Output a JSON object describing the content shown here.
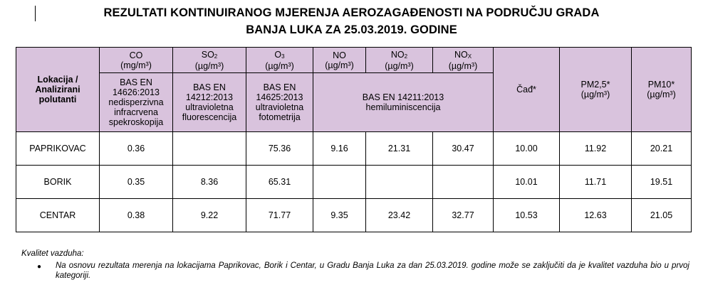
{
  "title": {
    "line1": "REZULTATI KONTINUIRANOG MJERENJA AEROZAGAĐENOSTI NA PODRUČJU GRADA",
    "line2": "BANJA LUKA ZA 25.03.2019. GODINE"
  },
  "table": {
    "corner_header": {
      "line1": "Lokacija /",
      "line2": "Analizirani",
      "line3": "polutanti"
    },
    "pollutants": [
      {
        "name": "CO",
        "unit": "(mg/m³)"
      },
      {
        "name": "SO",
        "sub": "2",
        "unit": "(µg/m³)"
      },
      {
        "name": "O",
        "sub": "3",
        "unit": "(µg/m³)"
      },
      {
        "name": "NO",
        "unit": "(µg/m³)"
      },
      {
        "name": "NO",
        "sub": "2",
        "unit": "(µg/m³)"
      },
      {
        "name": "NO",
        "sub": "X",
        "unit": "(µg/m³)"
      }
    ],
    "methods": {
      "co": [
        "BAS EN",
        "14626:2013",
        "nedisperzivna",
        "infracrvena",
        "spekroskopija"
      ],
      "so2": [
        "BAS EN",
        "14212:2013",
        "ultravioletna",
        "fluorescencija"
      ],
      "o3": [
        "BAS EN",
        "14625:2013",
        "ultravioletna",
        "fotometrija"
      ],
      "nox": [
        "BAS EN 14211:2013",
        "hemiluminiscencija"
      ]
    },
    "extra_headers": {
      "cad": "Čađ*",
      "pm25": {
        "name": "PM2,5*",
        "unit": "(µg/m³)"
      },
      "pm10": {
        "name": "PM10*",
        "unit": "(µg/m³)"
      }
    },
    "rows": [
      {
        "location": "PAPRIKOVAC",
        "values": [
          "0.36",
          "",
          "75.36",
          "9.16",
          "21.31",
          "30.47",
          "10.00",
          "11.92",
          "20.21"
        ]
      },
      {
        "location": "BORIK",
        "values": [
          "0.35",
          "8.36",
          "65.31",
          "",
          "",
          "",
          "10.01",
          "11.71",
          "19.51"
        ]
      },
      {
        "location": "CENTAR",
        "values": [
          "0.38",
          "9.22",
          "71.77",
          "9.35",
          "23.42",
          "32.77",
          "10.53",
          "12.63",
          "21.05"
        ]
      }
    ]
  },
  "notes": {
    "heading": "Kvalitet vazduha:",
    "bullet": "Na osnovu rezultata merenja na lokacijama Paprikovac, Borik i Centar, u Gradu Banja Luka za dan 25.03.2019. godine može se zaključiti da je kvalitet vazduha bio u prvoj kategoriji."
  }
}
